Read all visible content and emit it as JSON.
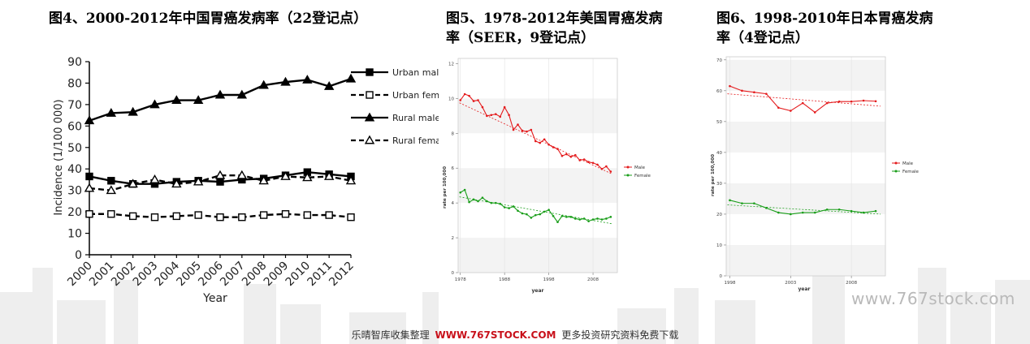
{
  "colors": {
    "black": "#000000",
    "red": "#e41a1c",
    "green": "#1a9e1a",
    "band": "#f3f3f3"
  },
  "titles": {
    "fig4": "图4、2000-2012年中国胃癌发病率（22登记点）",
    "fig5_line1": "图5、1978-2012年美国胃癌发病",
    "fig5_line2": "率（SEER，9登记点）",
    "fig6_line1": "图6、1998-2010年日本胃癌发病",
    "fig6_line2": "率（4登记点）"
  },
  "watermark": "www.767stock.com",
  "footer": {
    "prefix": "乐晴智库收集整理",
    "url": "WWW.767STOCK.COM",
    "suffix": "更多投资研究资料免费下载"
  },
  "chart_data": [
    {
      "type": "line",
      "xlabel": "Year",
      "ylabel": "Incidence (1/100 000)",
      "ylim": [
        0,
        90
      ],
      "yticks": [
        "0",
        "10",
        "20",
        "30",
        "40",
        "50",
        "60",
        "70",
        "80",
        "90"
      ],
      "categories": [
        "2000",
        "2001",
        "2002",
        "2003",
        "2004",
        "2005",
        "2006",
        "2007",
        "2008",
        "2009",
        "2010",
        "2011",
        "2012"
      ],
      "legend_position": "right",
      "series": [
        {
          "name": "Urban male",
          "marker": "square-filled",
          "dash": false,
          "values": [
            36.5,
            34.5,
            33.0,
            33.0,
            34.0,
            34.5,
            34.0,
            35.0,
            35.5,
            37.0,
            38.5,
            37.5,
            36.5
          ]
        },
        {
          "name": "Urban female",
          "marker": "square-open",
          "dash": true,
          "values": [
            19.0,
            19.0,
            18.0,
            17.5,
            18.0,
            18.5,
            17.5,
            17.5,
            18.5,
            19.0,
            18.5,
            18.5,
            17.5
          ]
        },
        {
          "name": "Rural male",
          "marker": "triangle-filled",
          "dash": false,
          "values": [
            62.5,
            66.0,
            66.5,
            70.0,
            72.0,
            72.0,
            74.5,
            74.5,
            79.0,
            80.5,
            81.5,
            78.5,
            82.0
          ]
        },
        {
          "name": "Rural female",
          "marker": "triangle-open",
          "dash": true,
          "values": [
            31.0,
            30.0,
            33.0,
            35.0,
            33.0,
            34.0,
            37.0,
            37.0,
            34.5,
            36.5,
            36.0,
            36.5,
            34.5
          ]
        }
      ]
    },
    {
      "type": "line",
      "xlabel": "year",
      "ylabel": "rate per 100,000",
      "ylim": [
        0,
        12.3
      ],
      "xlim": [
        1977.5,
        2013.5
      ],
      "yticks": [
        0,
        2,
        4,
        6,
        8,
        10,
        12
      ],
      "xticks": [
        1978,
        1988,
        1998,
        2008
      ],
      "legend_position": "right",
      "series": [
        {
          "name": "Male",
          "x": [
            1978,
            1979,
            1980,
            1981,
            1982,
            1983,
            1984,
            1985,
            1986,
            1987,
            1988,
            1989,
            1990,
            1991,
            1992,
            1993,
            1994,
            1995,
            1996,
            1997,
            1998,
            1999,
            2000,
            2001,
            2002,
            2003,
            2004,
            2005,
            2006,
            2007,
            2008,
            2009,
            2010,
            2011,
            2012
          ],
          "values": [
            9.9,
            10.25,
            10.15,
            9.85,
            9.9,
            9.5,
            9.0,
            9.05,
            9.1,
            8.95,
            9.5,
            9.05,
            8.2,
            8.5,
            8.15,
            8.1,
            8.2,
            7.55,
            7.45,
            7.65,
            7.35,
            7.2,
            7.1,
            6.7,
            6.8,
            6.65,
            6.75,
            6.45,
            6.5,
            6.35,
            6.3,
            6.2,
            5.95,
            6.1,
            5.8
          ],
          "trend": [
            9.75,
            5.65
          ]
        },
        {
          "name": "Female",
          "x": [
            1978,
            1979,
            1980,
            1981,
            1982,
            1983,
            1984,
            1985,
            1986,
            1987,
            1988,
            1989,
            1990,
            1991,
            1992,
            1993,
            1994,
            1995,
            1996,
            1997,
            1998,
            1999,
            2000,
            2001,
            2002,
            2003,
            2004,
            2005,
            2006,
            2007,
            2008,
            2009,
            2010,
            2011,
            2012
          ],
          "values": [
            4.6,
            4.75,
            4.05,
            4.2,
            4.1,
            4.3,
            4.1,
            4.0,
            4.0,
            3.95,
            3.75,
            3.7,
            3.8,
            3.55,
            3.4,
            3.35,
            3.15,
            3.3,
            3.35,
            3.5,
            3.6,
            3.25,
            2.9,
            3.25,
            3.2,
            3.2,
            3.1,
            3.05,
            3.1,
            2.95,
            3.05,
            3.1,
            3.05,
            3.1,
            3.2
          ],
          "trend": [
            4.35,
            2.8
          ]
        }
      ]
    },
    {
      "type": "line",
      "xlabel": "year",
      "ylabel": "rate per 100,000",
      "ylim": [
        0,
        71
      ],
      "xlim": [
        1997.7,
        2010.8
      ],
      "yticks": [
        0,
        10,
        20,
        30,
        40,
        50,
        60,
        70
      ],
      "xticks": [
        1998,
        2003,
        2008
      ],
      "legend_position": "right",
      "series": [
        {
          "name": "Male",
          "x": [
            1998,
            1999,
            2000,
            2001,
            2002,
            2003,
            2004,
            2005,
            2006,
            2007,
            2008,
            2009,
            2010
          ],
          "values": [
            61.5,
            60.0,
            59.5,
            59.0,
            54.5,
            53.5,
            56.0,
            53.0,
            56.0,
            56.5,
            56.5,
            56.8,
            56.6
          ],
          "trend": [
            59.0,
            55.0
          ]
        },
        {
          "name": "Female",
          "x": [
            1998,
            1999,
            2000,
            2001,
            2002,
            2003,
            2004,
            2005,
            2006,
            2007,
            2008,
            2009,
            2010
          ],
          "values": [
            24.5,
            23.5,
            23.5,
            22.0,
            20.5,
            20.0,
            20.5,
            20.5,
            21.5,
            21.5,
            21.0,
            20.5,
            21.0
          ],
          "trend": [
            23.0,
            20.0
          ]
        }
      ]
    }
  ]
}
